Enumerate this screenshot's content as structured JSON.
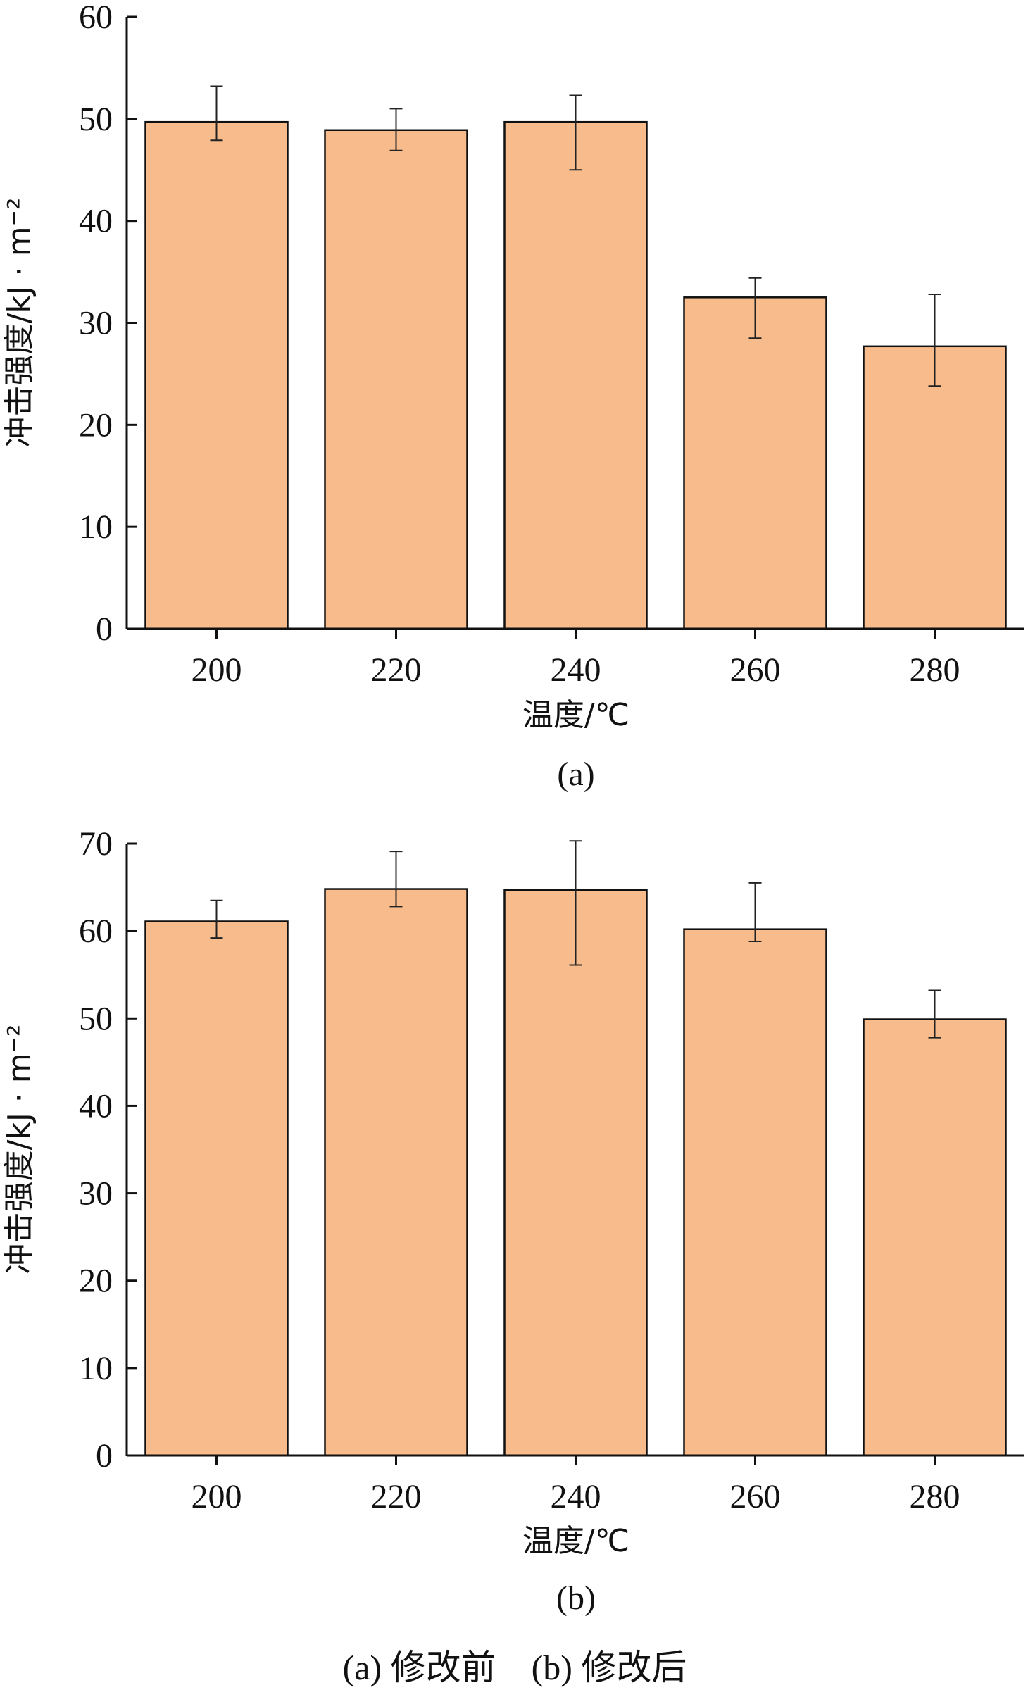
{
  "chart_data": [
    {
      "type": "bar",
      "panel_label": "(a)",
      "categories": [
        "200",
        "220",
        "240",
        "260",
        "280"
      ],
      "values": [
        49.7,
        48.9,
        49.7,
        32.5,
        27.7
      ],
      "error_low": [
        47.9,
        46.9,
        45.0,
        28.5,
        23.8
      ],
      "error_high": [
        53.2,
        51.0,
        52.3,
        34.4,
        32.8
      ],
      "xlabel": "温度/℃",
      "ylabel": "冲击强度/kJ · m⁻²",
      "ylim": [
        0,
        60
      ],
      "yticks": [
        0,
        10,
        20,
        30,
        40,
        50,
        60
      ],
      "bar_color": "#F8BC8C",
      "grid": false
    },
    {
      "type": "bar",
      "panel_label": "(b)",
      "categories": [
        "200",
        "220",
        "240",
        "260",
        "280"
      ],
      "values": [
        61.1,
        64.8,
        64.7,
        60.2,
        49.9
      ],
      "error_low": [
        59.2,
        62.8,
        56.1,
        58.8,
        47.8
      ],
      "error_high": [
        63.5,
        69.1,
        70.3,
        65.5,
        53.2
      ],
      "xlabel": "温度/℃",
      "ylabel": "冲击强度/kJ · m⁻²",
      "ylim": [
        0,
        70
      ],
      "yticks": [
        0,
        10,
        20,
        30,
        40,
        50,
        60,
        70
      ],
      "bar_color": "#F8BC8C",
      "grid": false
    }
  ],
  "caption": "(a) 修改前    (b) 修改后"
}
